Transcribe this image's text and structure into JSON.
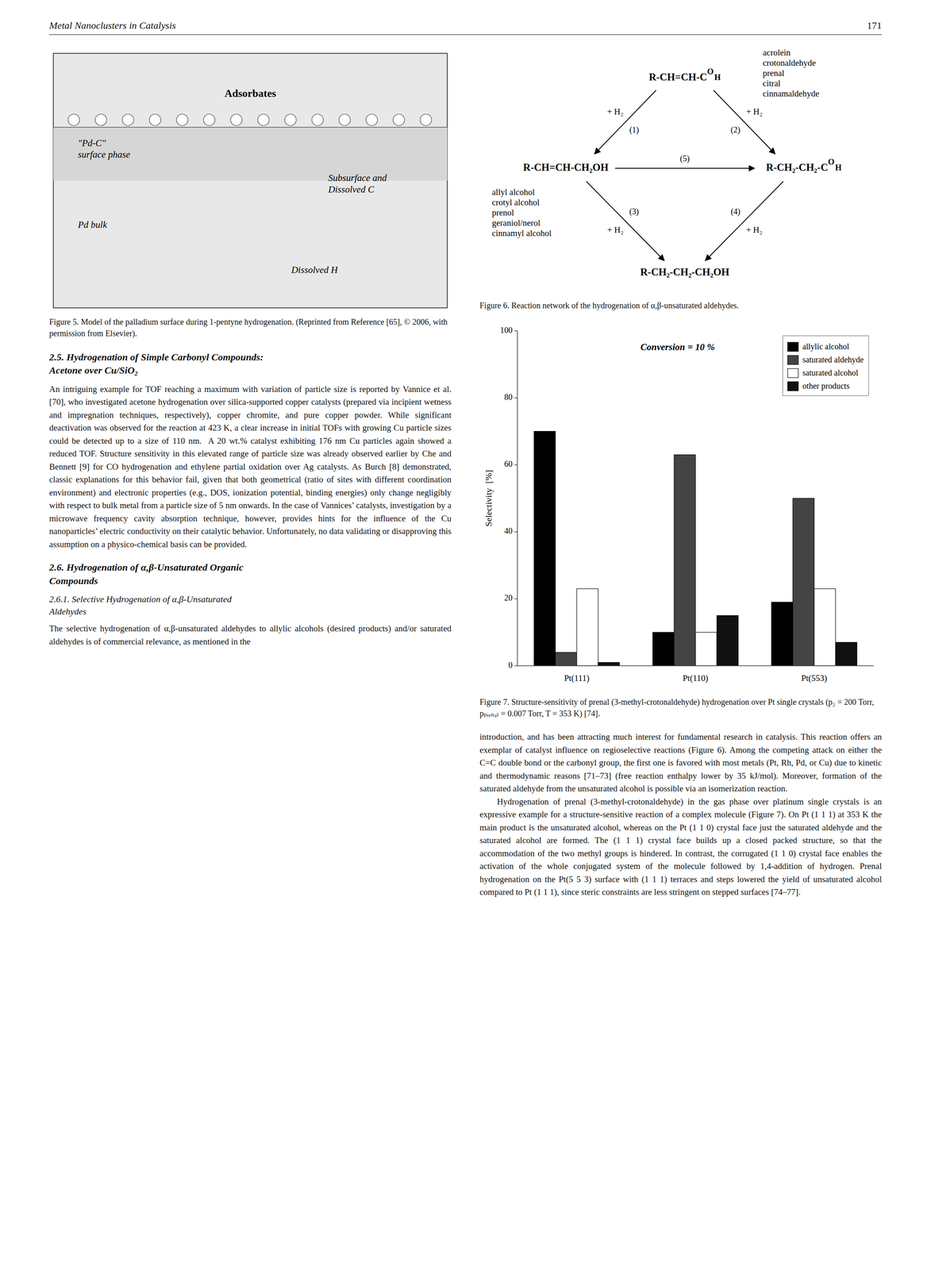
{
  "header": {
    "title": "Metal Nanoclusters in Catalysis",
    "page": "171"
  },
  "figure_5": {
    "labels": [
      "Adsorbates",
      "\"Pd-C\"\nsurface phase",
      "Pd bulk",
      "Subsurface and\nDissolved C",
      "Dissolved H"
    ],
    "caption": "Figure 5.   Model of the palladium surface during 1-pentyne hydrogenation. (Reprinted from Reference [65], © 2006, with permission from Elsevier)."
  },
  "section_2_5": {
    "title": [
      "2.5.  Hydrogenation of Simple Carbonyl Compounds:",
      "Acetone over Cu/SiO₂"
    ],
    "body": "An intriguing example for TOF reaching a maximum with variation of particle size is reported by Vannice et al. [70], who investigated acetone hydrogenation over silica-supported copper catalysts (prepared via incipient wetness and impregnation techniques, respectively), copper chromite, and pure copper powder. While significant deactivation was observed for the reaction at 423 K, a clear increase in initial TOFs with growing Cu particle sizes could be detected up to a size of 110 nm.  A 20 wt.% catalyst exhibiting 176 nm Cu particles again showed a reduced TOF. Structure sensitivity in this elevated range of particle size was already observed earlier by Che and Bennett [9] for CO hydrogenation and ethylene partial oxidation over Ag catalysts. As Burch [8] demonstrated, classic explanations for this behavior fail, given that both geometrical (ratio of sites with different coordination environment) and electronic properties (e.g., DOS, ionization potential, binding energies) only change negligibly with respect to bulk metal from a particle size of 5 nm onwards. In the case of Vannices’ catalysts, investigation by a microwave frequency cavity absorption technique, however, provides hints for the influence of the Cu nanoparticles’ electric conductivity on their catalytic behavior. Unfortunately, no data validating or disapproving this assumption on a physico-chemical basis can be provided."
  },
  "section_2_6": {
    "title": [
      "2.6.  Hydrogenation of α,β-Unsaturated Organic",
      "Compounds"
    ]
  },
  "section_2_6_1": {
    "title": [
      "2.6.1.  Selective Hydrogenation of α,β-Unsaturated",
      "Aldehydes"
    ],
    "body": "The selective hydrogenation of α,β-unsaturated aldehydes to allylic alcohols (desired products) and/or saturated aldehydes is of commercial relevance, as mentioned in the"
  },
  "figure_6": {
    "nodes": [
      {
        "formula": [
          "R-CH=CH-C",
          "O",
          "H"
        ],
        "names": "acrolein\ncrotonaldehyde\nprenal\ncitral\ncinnamaldehyde"
      },
      {
        "formula": [
          "R-CH=CH-CH₂OH"
        ],
        "names": "allyl alcohol\ncrotyl alcohol\nprenol\ngeraniol/nerol\ncinnamyl alcohol"
      },
      {
        "formula": [
          "R-CH₂-CH₂-C",
          "O",
          "H"
        ]
      },
      {
        "formula": [
          "R-CH₂-CH₂-CH₂OH"
        ]
      }
    ],
    "steps": [
      {
        "label": "(1)",
        "reagent": "+ H₂"
      },
      {
        "label": "(2)",
        "reagent": "+ H₂"
      },
      {
        "label": "(5)"
      },
      {
        "label": "(3)",
        "reagent": "+ H₂"
      },
      {
        "label": "(4)",
        "reagent": "+ H₂"
      }
    ],
    "caption": "Figure 6.   Reaction network of the hydrogenation of α,β-unsaturated aldehydes."
  },
  "chart_data": {
    "type": "bar",
    "categories": [
      "Pt(111)",
      "Pt(110)",
      "Pt(553)"
    ],
    "series": [
      {
        "name": "allylic alcohol",
        "color": "#000000",
        "values": [
          70,
          10,
          19
        ]
      },
      {
        "name": "saturated aldehyde",
        "color": "#444444",
        "values": [
          4,
          63,
          50
        ]
      },
      {
        "name": "saturated alcohol",
        "color": "#ffffff",
        "values": [
          23,
          10,
          23
        ]
      },
      {
        "name": "other products",
        "color": "#111111",
        "values": [
          1,
          15,
          7
        ]
      }
    ],
    "ylabel": "Selectivity  [%]",
    "ylim": [
      0,
      100
    ],
    "yticks": [
      0,
      20,
      40,
      60,
      80,
      100
    ],
    "annotation": "Conversion = 10 %",
    "legend": "upper right",
    "grid": false
  },
  "figure_7_caption": "Figure 7.   Structure-sensitivity of prenal (3-methyl-crotonaldehyde) hydrogenation over Pt single crystals (p₂ = 200 Torr, pₚᵣₑₙₐₗ = 0.007 Torr, T = 353 K) [74].",
  "continued_body": "introduction, and has been attracting much interest for fundamental research in catalysis. This reaction offers an exemplar of catalyst influence on regioselective reactions (Figure 6). Among the competing attack on either the C=C double bond or the carbonyl group, the first one is favored with most metals (Pt, Rh, Pd, or Cu) due to kinetic and thermodynamic reasons [71–73] (free reaction enthalpy lower by 35 kJ/mol). Moreover, formation of the saturated aldehyde from the unsaturated alcohol is possible via an isomerization reaction.\n    Hydrogenation of prenal (3-methyl-crotonaldehyde) in the gas phase over platinum single crystals is an expressive example for a structure-sensitive reaction of a complex molecule (Figure 7). On Pt (1 1 1) at 353 K the main product is the unsaturated alcohol, whereas on the Pt (1 1 0) crystal face just the saturated aldehyde and the saturated alcohol are formed. The (1 1 1) crystal face builds up a closed packed structure, so that the accommodation of the two methyl groups is hindered. In contrast, the corrugated (1 1 0) crystal face enables the activation of the whole conjugated system of the molecule followed by 1,4-addition of hydrogen. Prenal hydrogenation on the Pt(5 5 3) surface with (1 1 1) terraces and steps lowered the yield of unsaturated alcohol compared to Pt (1 1 1), since steric constraints are less stringent on stepped surfaces [74–77]."
}
